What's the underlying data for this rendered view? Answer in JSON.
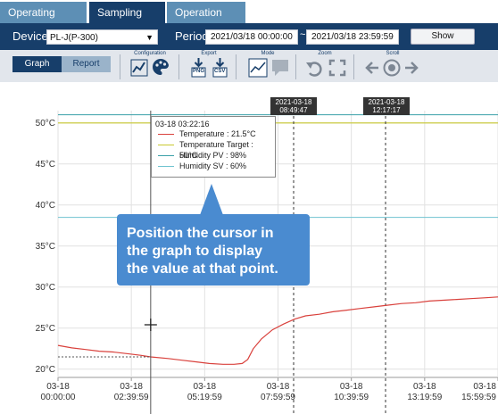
{
  "tabs": [
    {
      "label": "Operating history"
    },
    {
      "label": "Sampling Data"
    },
    {
      "label": "Operation Ratio"
    }
  ],
  "filter": {
    "device_label": "Device",
    "device_value": "PL-J(P-300)",
    "period_label": "Period",
    "period_start": "2021/03/18 00:00:00",
    "period_sep": "~",
    "period_end": "2021/03/18 23:59:59",
    "show_label": "Show"
  },
  "toolbar": {
    "graph_label": "Graph",
    "report_label": "Report",
    "configuration_label": "Configuration",
    "export_label": "Export",
    "mode_label": "Mode",
    "zoom_label": "Zoom",
    "scroll_label": "Scroll",
    "png_label": "PNG",
    "csv_label": "CSV"
  },
  "markers": [
    {
      "date": "2021-03-18",
      "time": "08:49:47"
    },
    {
      "date": "2021-03-18",
      "time": "12:17:17"
    }
  ],
  "tooltip": {
    "timestamp": "03-18 03:22:16",
    "items": [
      {
        "label": "Temperature : 21.5°C",
        "color": "#d9413c"
      },
      {
        "label": "Temperature Target : 50°C",
        "color": "#c8c830"
      },
      {
        "label": "Humidity PV : 98%",
        "color": "#3aa0a8"
      },
      {
        "label": "Humidity SV : 60%",
        "color": "#6fc3d0"
      }
    ]
  },
  "callout": {
    "line1": "Position the cursor in",
    "line2": "the graph to display",
    "line3": "the value at that point."
  },
  "chart_data": {
    "type": "line",
    "y_ticks": [
      "50°C",
      "45°C",
      "40°C",
      "35°C",
      "30°C",
      "25°C",
      "20°C"
    ],
    "y_tick_values": [
      50,
      45,
      40,
      35,
      30,
      25,
      20
    ],
    "x_ticks": [
      {
        "date": "03-18",
        "time": "00:00:00"
      },
      {
        "date": "03-18",
        "time": "02:39:59"
      },
      {
        "date": "03-18",
        "time": "05:19:59"
      },
      {
        "date": "03-18",
        "time": "07:59:59"
      },
      {
        "date": "03-18",
        "time": "10:39:59"
      },
      {
        "date": "03-18",
        "time": "13:19:59"
      },
      {
        "date": "03-18",
        "time": "15:59:59"
      }
    ],
    "ylim": [
      19,
      51.5
    ],
    "x_hours_range": [
      0,
      16
    ],
    "target_value": 50,
    "humidity_sv_value": 38.5,
    "humidity_pv_value": 51,
    "series": [
      {
        "name": "Temperature",
        "color": "#d9413c",
        "x_hours": [
          0,
          0.5,
          1,
          1.5,
          2,
          2.5,
          3,
          3.37,
          4,
          4.5,
          5,
          5.5,
          6,
          6.4,
          6.7,
          6.9,
          7.1,
          7.4,
          7.8,
          8.2,
          8.6,
          9,
          9.5,
          10,
          10.5,
          11,
          11.5,
          12,
          12.5,
          13,
          13.5,
          14,
          14.5,
          15,
          15.5,
          16
        ],
        "y": [
          22.9,
          22.6,
          22.4,
          22.2,
          22.1,
          21.9,
          21.7,
          21.5,
          21.3,
          21.1,
          20.9,
          20.7,
          20.6,
          20.6,
          20.7,
          21.2,
          22.5,
          23.7,
          24.8,
          25.5,
          26.1,
          26.5,
          26.7,
          27.0,
          27.2,
          27.4,
          27.6,
          27.8,
          28.0,
          28.1,
          28.3,
          28.4,
          28.5,
          28.6,
          28.7,
          28.8
        ]
      },
      {
        "name": "Temperature Target",
        "color": "#c8c830"
      },
      {
        "name": "Humidity PV",
        "color": "#3aa0a8"
      },
      {
        "name": "Humidity SV",
        "color": "#6fc3d0"
      }
    ],
    "cursor_hours": 3.37,
    "cursor_value": 21.5,
    "grid": true
  }
}
